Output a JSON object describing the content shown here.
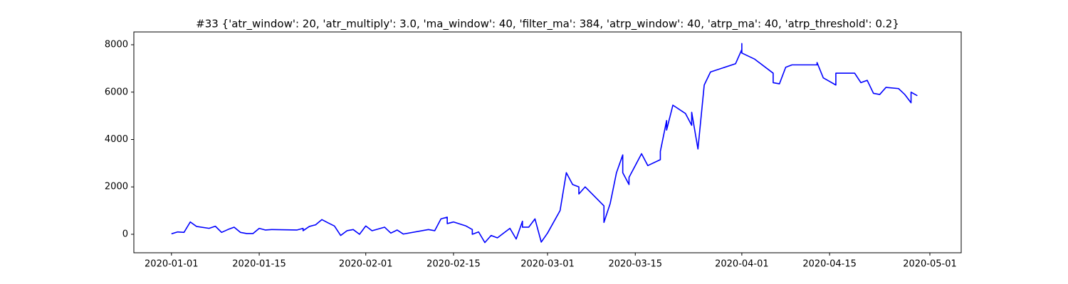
{
  "chart_data": {
    "type": "line",
    "title": "#33 {'atr_window': 20, 'atr_multiply': 3.0, 'ma_window': 40, 'filter_ma': 384, 'atrp_window': 40, 'atrp_ma': 40, 'atrp_threshold': 0.2}",
    "x": [
      "2020-01-01",
      "2020-01-02",
      "2020-01-03",
      "2020-01-04",
      "2020-01-05",
      "2020-01-07",
      "2020-01-08",
      "2020-01-09",
      "2020-01-10",
      "2020-01-11",
      "2020-01-12",
      "2020-01-13",
      "2020-01-14",
      "2020-01-15",
      "2020-01-16",
      "2020-01-17",
      "2020-01-21",
      "2020-01-22",
      "2020-01-22",
      "2020-01-23",
      "2020-01-24",
      "2020-01-25",
      "2020-01-26",
      "2020-01-27",
      "2020-01-28",
      "2020-01-29",
      "2020-01-30",
      "2020-01-31",
      "2020-02-01",
      "2020-02-02",
      "2020-02-04",
      "2020-02-05",
      "2020-02-06",
      "2020-02-07",
      "2020-02-11",
      "2020-02-12",
      "2020-02-13",
      "2020-02-14",
      "2020-02-14",
      "2020-02-15",
      "2020-02-17",
      "2020-02-18",
      "2020-02-18",
      "2020-02-19",
      "2020-02-20",
      "2020-02-21",
      "2020-02-22",
      "2020-02-24",
      "2020-02-25",
      "2020-02-26",
      "2020-02-26",
      "2020-02-27",
      "2020-02-28",
      "2020-02-29",
      "2020-03-01",
      "2020-03-03",
      "2020-03-04",
      "2020-03-05",
      "2020-03-06",
      "2020-03-06",
      "2020-03-07",
      "2020-03-10",
      "2020-03-10",
      "2020-03-11",
      "2020-03-12",
      "2020-03-13",
      "2020-03-13",
      "2020-03-14",
      "2020-03-14",
      "2020-03-16",
      "2020-03-17",
      "2020-03-19",
      "2020-03-19",
      "2020-03-20",
      "2020-03-20",
      "2020-03-21",
      "2020-03-23",
      "2020-03-24",
      "2020-03-24",
      "2020-03-25",
      "2020-03-26",
      "2020-03-27",
      "2020-03-31",
      "2020-04-01",
      "2020-04-01",
      "2020-04-01",
      "2020-04-03",
      "2020-04-06",
      "2020-04-06",
      "2020-04-07",
      "2020-04-08",
      "2020-04-09",
      "2020-04-13",
      "2020-04-13",
      "2020-04-14",
      "2020-04-15",
      "2020-04-16",
      "2020-04-16",
      "2020-04-17",
      "2020-04-19",
      "2020-04-20",
      "2020-04-21",
      "2020-04-22",
      "2020-04-23",
      "2020-04-24",
      "2020-04-26",
      "2020-04-27",
      "2020-04-28",
      "2020-04-28",
      "2020-04-28",
      "2020-04-29"
    ],
    "series": [
      {
        "color": "#0000ff",
        "values": [
          20,
          100,
          80,
          520,
          330,
          250,
          340,
          80,
          200,
          300,
          80,
          30,
          30,
          250,
          180,
          200,
          180,
          250,
          150,
          330,
          400,
          620,
          480,
          350,
          -50,
          150,
          200,
          0,
          350,
          150,
          300,
          50,
          180,
          10,
          200,
          150,
          650,
          720,
          450,
          520,
          350,
          200,
          0,
          100,
          -350,
          -50,
          -150,
          250,
          -200,
          550,
          300,
          300,
          650,
          -330,
          50,
          1000,
          2600,
          2100,
          2000,
          1700,
          2000,
          1200,
          500,
          1300,
          2600,
          3350,
          2600,
          2100,
          2400,
          3400,
          2900,
          3150,
          3500,
          4800,
          4400,
          5450,
          5100,
          4600,
          5150,
          3600,
          6300,
          6850,
          7200,
          7800,
          8050,
          7650,
          7400,
          6800,
          6400,
          6350,
          7050,
          7150,
          7150,
          7250,
          6600,
          6450,
          6300,
          6800,
          6800,
          6800,
          6400,
          6500,
          5950,
          5900,
          6200,
          6150,
          5900,
          5550,
          5700,
          6000,
          5850
        ]
      }
    ],
    "xlim": [
      "2019-12-26",
      "2020-05-06"
    ],
    "xticks": [
      "2020-01-01",
      "2020-01-15",
      "2020-02-01",
      "2020-02-15",
      "2020-03-01",
      "2020-03-15",
      "2020-04-01",
      "2020-04-15",
      "2020-05-01"
    ],
    "ylim": [
      -780,
      8540
    ],
    "yticks": [
      0,
      2000,
      4000,
      6000,
      8000
    ]
  }
}
